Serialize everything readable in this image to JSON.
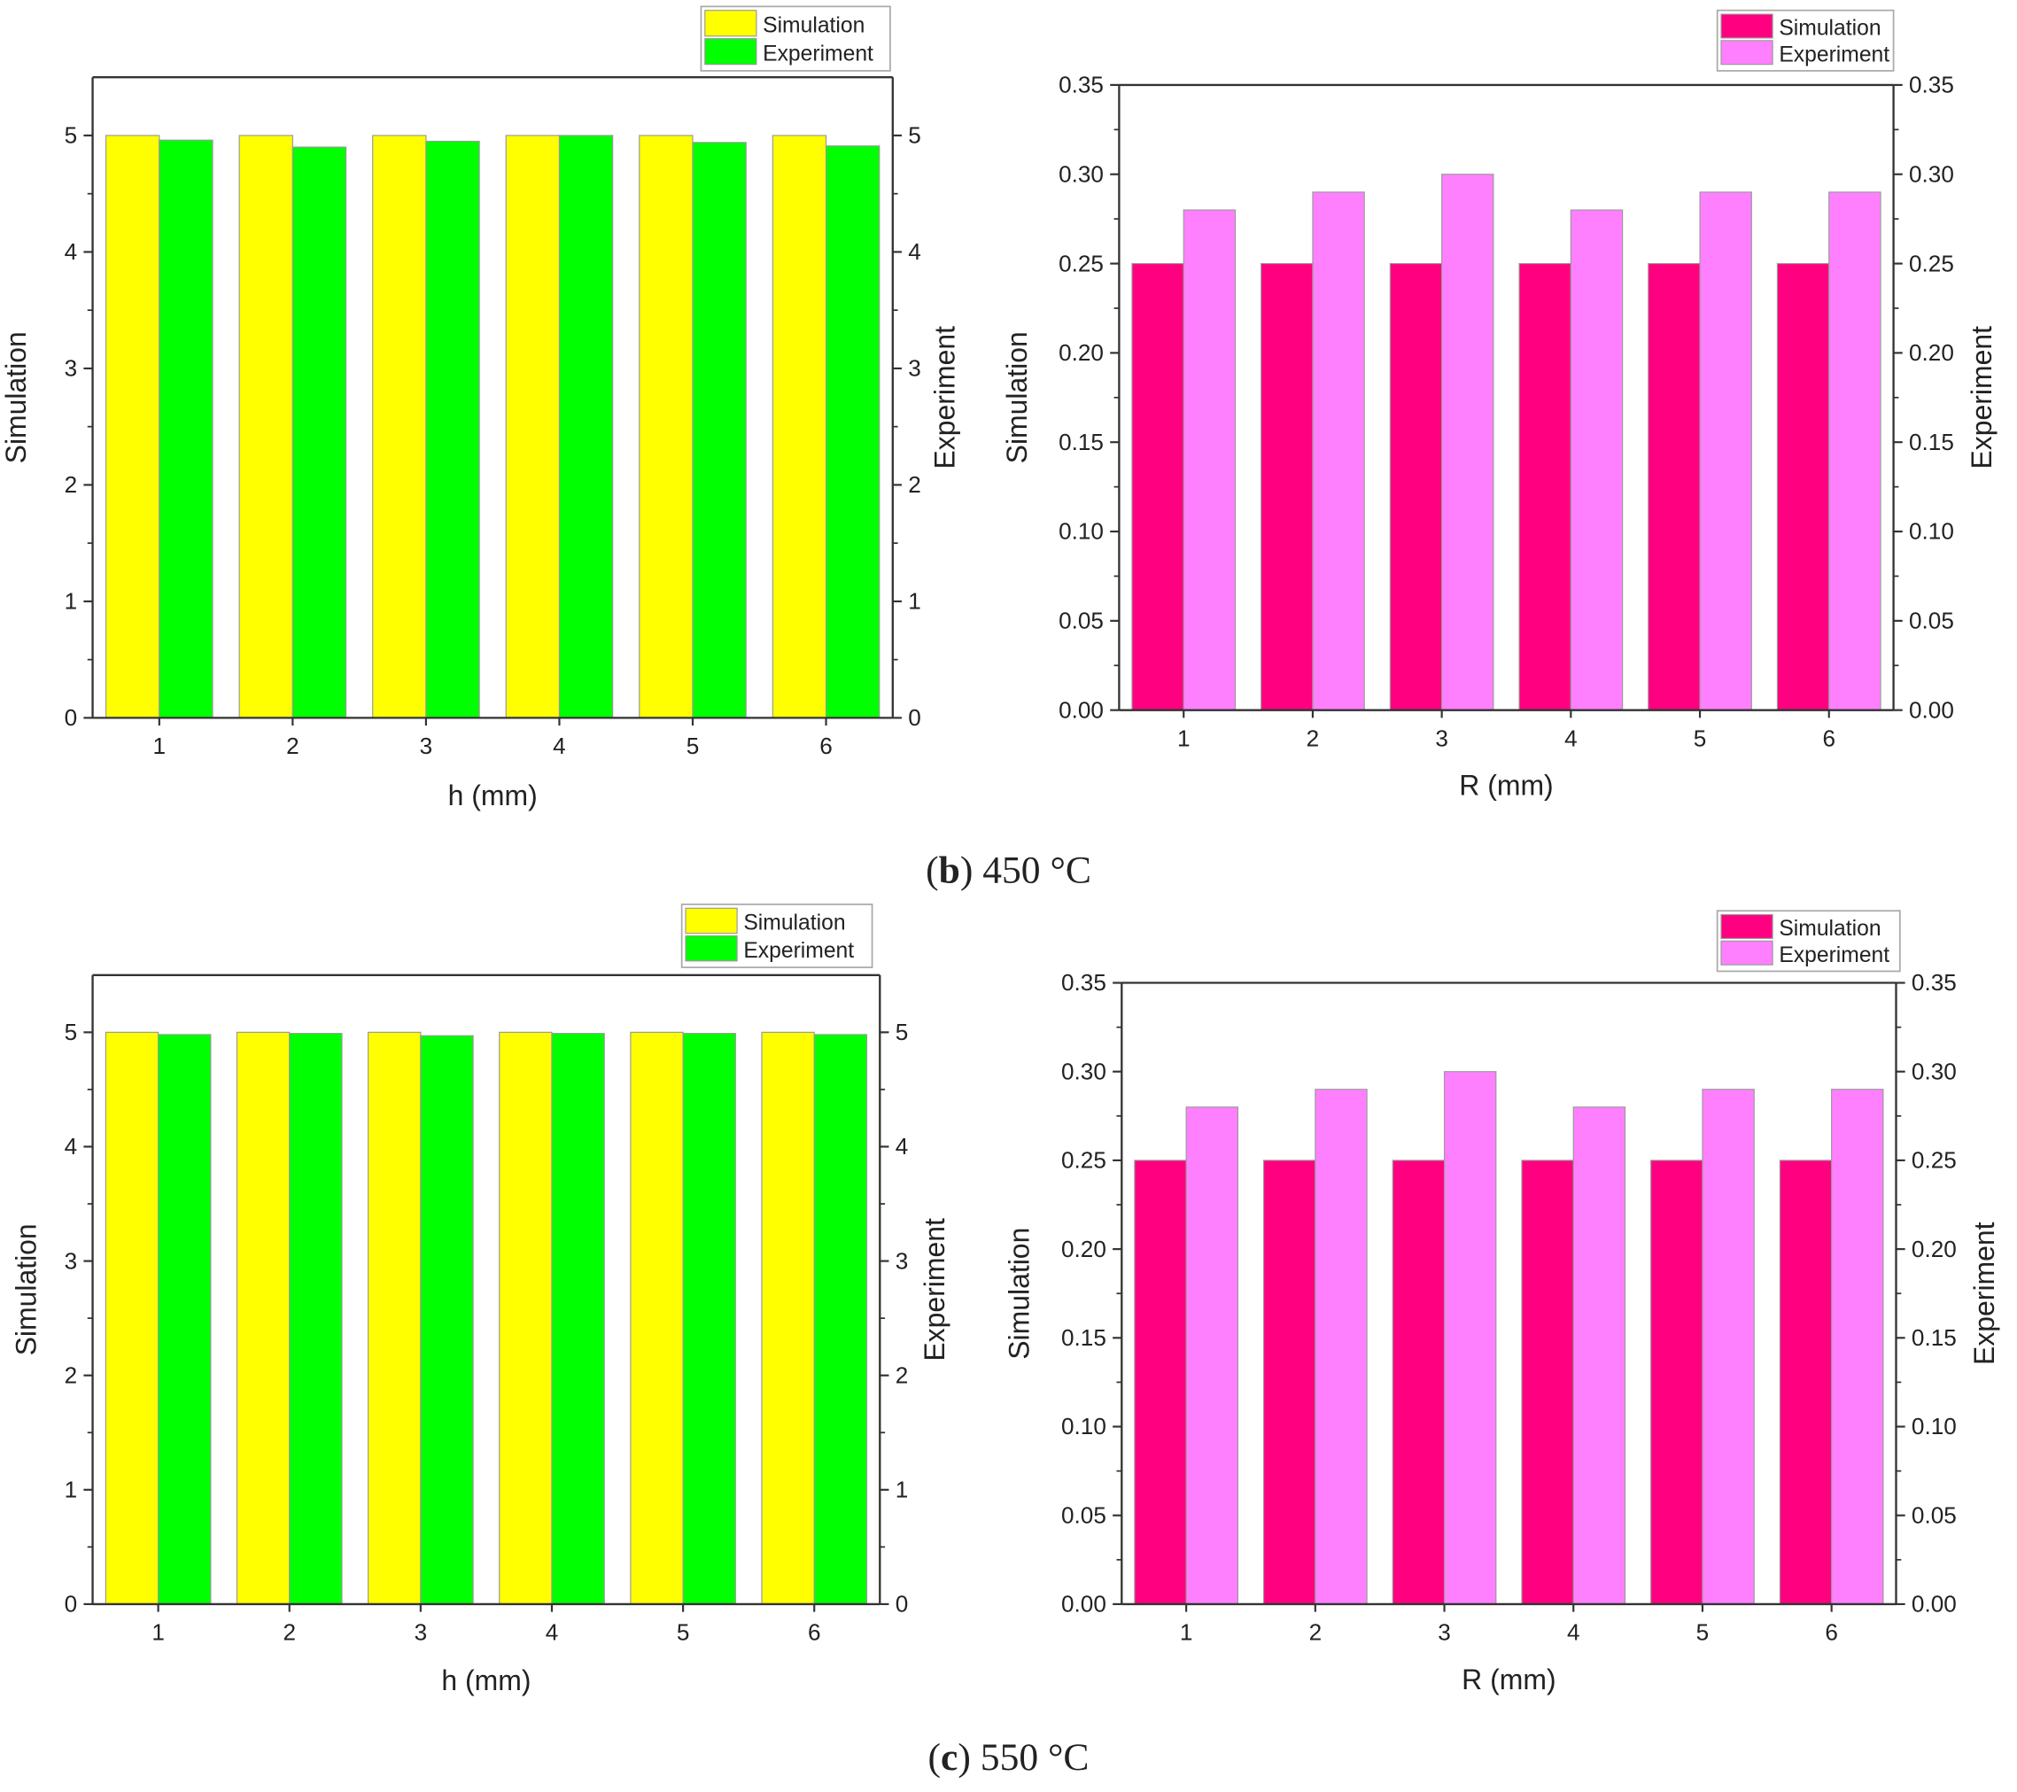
{
  "captions": [
    {
      "letter": "b",
      "rest": " 450 °C"
    },
    {
      "letter": "c",
      "rest": " 550 °C"
    }
  ],
  "chart_data": [
    {
      "type": "bar",
      "title": "",
      "xlabel": "h (mm)",
      "ylabel": "Simulation",
      "ylabel_right": "Experiment",
      "categories": [
        "1",
        "2",
        "3",
        "4",
        "5",
        "6"
      ],
      "ylim": [
        0,
        5.5
      ],
      "yticks": [
        "0",
        "1",
        "2",
        "3",
        "4",
        "5"
      ],
      "legend_position": "top-right",
      "series": [
        {
          "name": "Simulation",
          "color": "#ffff00",
          "values": [
            5.0,
            5.0,
            5.0,
            5.0,
            5.0,
            5.0
          ]
        },
        {
          "name": "Experiment",
          "color": "#00ff00",
          "values": [
            4.96,
            4.9,
            4.95,
            5.0,
            4.94,
            4.91
          ]
        }
      ]
    },
    {
      "type": "bar",
      "title": "",
      "xlabel": "R (mm)",
      "ylabel": "Simulation",
      "ylabel_right": "Experiment",
      "categories": [
        "1",
        "2",
        "3",
        "4",
        "5",
        "6"
      ],
      "ylim": [
        0,
        0.35
      ],
      "yticks": [
        "0.00",
        "0.05",
        "0.10",
        "0.15",
        "0.20",
        "0.25",
        "0.30",
        "0.35"
      ],
      "legend_position": "top-right",
      "series": [
        {
          "name": "Simulation",
          "color": "#ff0080",
          "values": [
            0.25,
            0.25,
            0.25,
            0.25,
            0.25,
            0.25
          ]
        },
        {
          "name": "Experiment",
          "color": "#ff80ff",
          "values": [
            0.28,
            0.29,
            0.3,
            0.28,
            0.29,
            0.29
          ]
        }
      ]
    },
    {
      "type": "bar",
      "title": "",
      "xlabel": "h (mm)",
      "ylabel": "Simulation",
      "ylabel_right": "Experiment",
      "categories": [
        "1",
        "2",
        "3",
        "4",
        "5",
        "6"
      ],
      "ylim": [
        0,
        5.5
      ],
      "yticks": [
        "0",
        "1",
        "2",
        "3",
        "4",
        "5"
      ],
      "legend_position": "top-right",
      "series": [
        {
          "name": "Simulation",
          "color": "#ffff00",
          "values": [
            5.0,
            5.0,
            5.0,
            5.0,
            5.0,
            5.0
          ]
        },
        {
          "name": "Experiment",
          "color": "#00ff00",
          "values": [
            4.98,
            4.99,
            4.97,
            4.99,
            4.99,
            4.98
          ]
        }
      ]
    },
    {
      "type": "bar",
      "title": "",
      "xlabel": "R (mm)",
      "ylabel": "Simulation",
      "ylabel_right": "Experiment",
      "categories": [
        "1",
        "2",
        "3",
        "4",
        "5",
        "6"
      ],
      "ylim": [
        0,
        0.35
      ],
      "yticks": [
        "0.00",
        "0.05",
        "0.10",
        "0.15",
        "0.20",
        "0.25",
        "0.30",
        "0.35"
      ],
      "legend_position": "top-right",
      "series": [
        {
          "name": "Simulation",
          "color": "#ff0080",
          "values": [
            0.25,
            0.25,
            0.25,
            0.25,
            0.25,
            0.25
          ]
        },
        {
          "name": "Experiment",
          "color": "#ff80ff",
          "values": [
            0.28,
            0.29,
            0.3,
            0.28,
            0.29,
            0.29
          ]
        }
      ]
    }
  ]
}
